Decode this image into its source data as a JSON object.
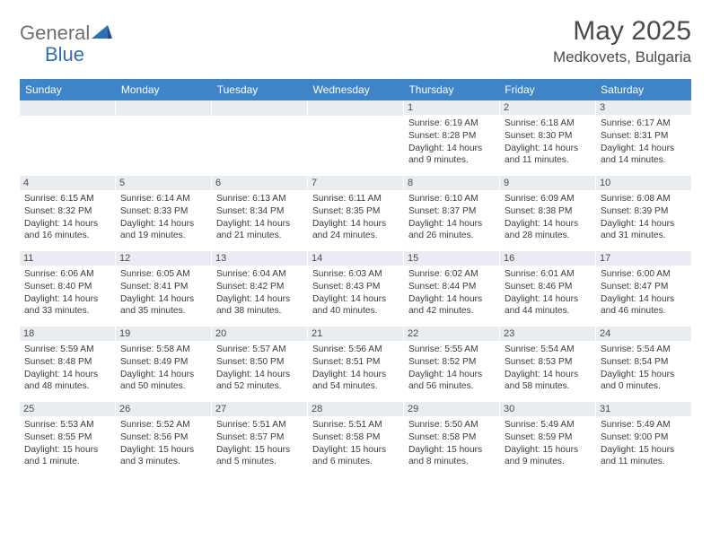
{
  "logo": {
    "part1": "General",
    "part2": "Blue"
  },
  "title": "May 2025",
  "location": "Medkovets, Bulgaria",
  "colors": {
    "header_bg": "#3e84c6",
    "header_text": "#ffffff",
    "daynum_bg": "#e9edf1",
    "body_text": "#3b3b3b",
    "title_text": "#4b4b4b",
    "logo_gray": "#6f6f6f",
    "logo_blue": "#2f6fb4"
  },
  "weekdays": [
    "Sunday",
    "Monday",
    "Tuesday",
    "Wednesday",
    "Thursday",
    "Friday",
    "Saturday"
  ],
  "weeks": [
    [
      {
        "n": "",
        "sr": "",
        "ss": "",
        "d1": "",
        "d2": ""
      },
      {
        "n": "",
        "sr": "",
        "ss": "",
        "d1": "",
        "d2": ""
      },
      {
        "n": "",
        "sr": "",
        "ss": "",
        "d1": "",
        "d2": ""
      },
      {
        "n": "",
        "sr": "",
        "ss": "",
        "d1": "",
        "d2": ""
      },
      {
        "n": "1",
        "sr": "Sunrise: 6:19 AM",
        "ss": "Sunset: 8:28 PM",
        "d1": "Daylight: 14 hours",
        "d2": "and 9 minutes."
      },
      {
        "n": "2",
        "sr": "Sunrise: 6:18 AM",
        "ss": "Sunset: 8:30 PM",
        "d1": "Daylight: 14 hours",
        "d2": "and 11 minutes."
      },
      {
        "n": "3",
        "sr": "Sunrise: 6:17 AM",
        "ss": "Sunset: 8:31 PM",
        "d1": "Daylight: 14 hours",
        "d2": "and 14 minutes."
      }
    ],
    [
      {
        "n": "4",
        "sr": "Sunrise: 6:15 AM",
        "ss": "Sunset: 8:32 PM",
        "d1": "Daylight: 14 hours",
        "d2": "and 16 minutes."
      },
      {
        "n": "5",
        "sr": "Sunrise: 6:14 AM",
        "ss": "Sunset: 8:33 PM",
        "d1": "Daylight: 14 hours",
        "d2": "and 19 minutes."
      },
      {
        "n": "6",
        "sr": "Sunrise: 6:13 AM",
        "ss": "Sunset: 8:34 PM",
        "d1": "Daylight: 14 hours",
        "d2": "and 21 minutes."
      },
      {
        "n": "7",
        "sr": "Sunrise: 6:11 AM",
        "ss": "Sunset: 8:35 PM",
        "d1": "Daylight: 14 hours",
        "d2": "and 24 minutes."
      },
      {
        "n": "8",
        "sr": "Sunrise: 6:10 AM",
        "ss": "Sunset: 8:37 PM",
        "d1": "Daylight: 14 hours",
        "d2": "and 26 minutes."
      },
      {
        "n": "9",
        "sr": "Sunrise: 6:09 AM",
        "ss": "Sunset: 8:38 PM",
        "d1": "Daylight: 14 hours",
        "d2": "and 28 minutes."
      },
      {
        "n": "10",
        "sr": "Sunrise: 6:08 AM",
        "ss": "Sunset: 8:39 PM",
        "d1": "Daylight: 14 hours",
        "d2": "and 31 minutes."
      }
    ],
    [
      {
        "n": "11",
        "sr": "Sunrise: 6:06 AM",
        "ss": "Sunset: 8:40 PM",
        "d1": "Daylight: 14 hours",
        "d2": "and 33 minutes."
      },
      {
        "n": "12",
        "sr": "Sunrise: 6:05 AM",
        "ss": "Sunset: 8:41 PM",
        "d1": "Daylight: 14 hours",
        "d2": "and 35 minutes."
      },
      {
        "n": "13",
        "sr": "Sunrise: 6:04 AM",
        "ss": "Sunset: 8:42 PM",
        "d1": "Daylight: 14 hours",
        "d2": "and 38 minutes."
      },
      {
        "n": "14",
        "sr": "Sunrise: 6:03 AM",
        "ss": "Sunset: 8:43 PM",
        "d1": "Daylight: 14 hours",
        "d2": "and 40 minutes."
      },
      {
        "n": "15",
        "sr": "Sunrise: 6:02 AM",
        "ss": "Sunset: 8:44 PM",
        "d1": "Daylight: 14 hours",
        "d2": "and 42 minutes."
      },
      {
        "n": "16",
        "sr": "Sunrise: 6:01 AM",
        "ss": "Sunset: 8:46 PM",
        "d1": "Daylight: 14 hours",
        "d2": "and 44 minutes."
      },
      {
        "n": "17",
        "sr": "Sunrise: 6:00 AM",
        "ss": "Sunset: 8:47 PM",
        "d1": "Daylight: 14 hours",
        "d2": "and 46 minutes."
      }
    ],
    [
      {
        "n": "18",
        "sr": "Sunrise: 5:59 AM",
        "ss": "Sunset: 8:48 PM",
        "d1": "Daylight: 14 hours",
        "d2": "and 48 minutes."
      },
      {
        "n": "19",
        "sr": "Sunrise: 5:58 AM",
        "ss": "Sunset: 8:49 PM",
        "d1": "Daylight: 14 hours",
        "d2": "and 50 minutes."
      },
      {
        "n": "20",
        "sr": "Sunrise: 5:57 AM",
        "ss": "Sunset: 8:50 PM",
        "d1": "Daylight: 14 hours",
        "d2": "and 52 minutes."
      },
      {
        "n": "21",
        "sr": "Sunrise: 5:56 AM",
        "ss": "Sunset: 8:51 PM",
        "d1": "Daylight: 14 hours",
        "d2": "and 54 minutes."
      },
      {
        "n": "22",
        "sr": "Sunrise: 5:55 AM",
        "ss": "Sunset: 8:52 PM",
        "d1": "Daylight: 14 hours",
        "d2": "and 56 minutes."
      },
      {
        "n": "23",
        "sr": "Sunrise: 5:54 AM",
        "ss": "Sunset: 8:53 PM",
        "d1": "Daylight: 14 hours",
        "d2": "and 58 minutes."
      },
      {
        "n": "24",
        "sr": "Sunrise: 5:54 AM",
        "ss": "Sunset: 8:54 PM",
        "d1": "Daylight: 15 hours",
        "d2": "and 0 minutes."
      }
    ],
    [
      {
        "n": "25",
        "sr": "Sunrise: 5:53 AM",
        "ss": "Sunset: 8:55 PM",
        "d1": "Daylight: 15 hours",
        "d2": "and 1 minute."
      },
      {
        "n": "26",
        "sr": "Sunrise: 5:52 AM",
        "ss": "Sunset: 8:56 PM",
        "d1": "Daylight: 15 hours",
        "d2": "and 3 minutes."
      },
      {
        "n": "27",
        "sr": "Sunrise: 5:51 AM",
        "ss": "Sunset: 8:57 PM",
        "d1": "Daylight: 15 hours",
        "d2": "and 5 minutes."
      },
      {
        "n": "28",
        "sr": "Sunrise: 5:51 AM",
        "ss": "Sunset: 8:58 PM",
        "d1": "Daylight: 15 hours",
        "d2": "and 6 minutes."
      },
      {
        "n": "29",
        "sr": "Sunrise: 5:50 AM",
        "ss": "Sunset: 8:58 PM",
        "d1": "Daylight: 15 hours",
        "d2": "and 8 minutes."
      },
      {
        "n": "30",
        "sr": "Sunrise: 5:49 AM",
        "ss": "Sunset: 8:59 PM",
        "d1": "Daylight: 15 hours",
        "d2": "and 9 minutes."
      },
      {
        "n": "31",
        "sr": "Sunrise: 5:49 AM",
        "ss": "Sunset: 9:00 PM",
        "d1": "Daylight: 15 hours",
        "d2": "and 11 minutes."
      }
    ]
  ]
}
